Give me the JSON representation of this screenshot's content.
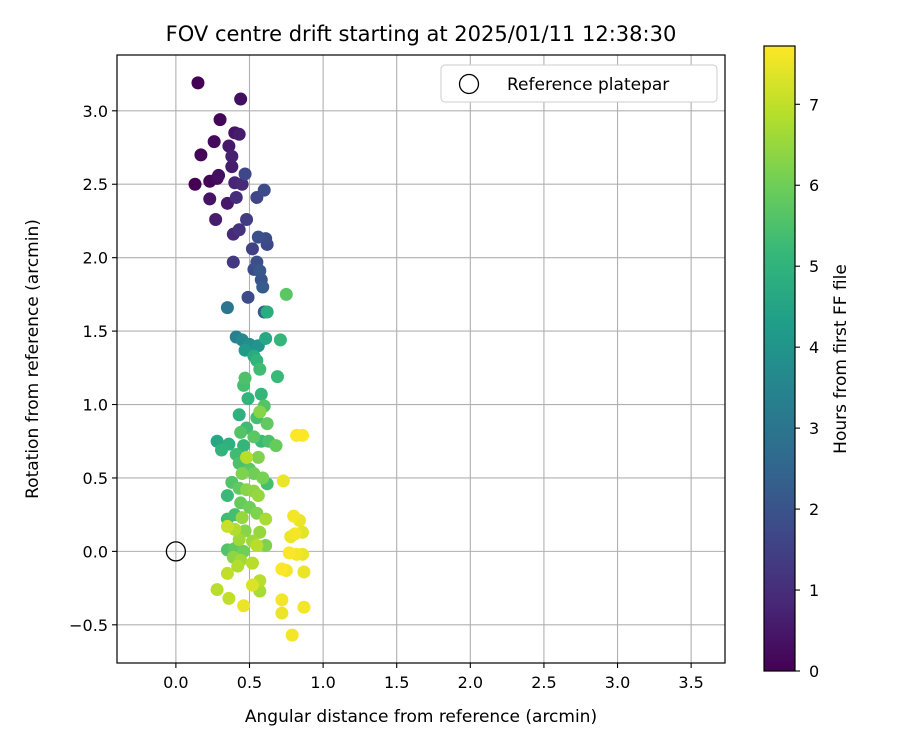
{
  "chart_data": {
    "type": "scatter",
    "title": "FOV centre drift starting at 2025/01/11 12:38:30",
    "xlabel": "Angular distance from reference (arcmin)",
    "ylabel": "Rotation from reference (arcmin)",
    "xlim": [
      -0.4,
      3.73
    ],
    "ylim": [
      -0.76,
      3.38
    ],
    "xticks": [
      "0.0",
      "0.5",
      "1.0",
      "1.5",
      "2.0",
      "2.5",
      "3.0",
      "3.5"
    ],
    "yticks": [
      "−0.5",
      "0.0",
      "0.5",
      "1.0",
      "1.5",
      "2.0",
      "2.5",
      "3.0"
    ],
    "grid": true,
    "legend_position": "top-right",
    "reference": {
      "label": "Reference platepar",
      "x": 0.0,
      "y": 0.0
    },
    "colorbar": {
      "label": "Hours from first FF file",
      "min": 0,
      "max": 7.72,
      "ticks": [
        "0",
        "1",
        "2",
        "3",
        "4",
        "5",
        "6",
        "7"
      ],
      "colormap": [
        "#440154",
        "#482878",
        "#3e4989",
        "#31688e",
        "#26828e",
        "#1f9e89",
        "#35b779",
        "#6ece58",
        "#b5de2b",
        "#fde725"
      ]
    },
    "points": [
      [
        0.15,
        3.19,
        0.0
      ],
      [
        0.44,
        3.08,
        0.3
      ],
      [
        0.3,
        2.94,
        0.1
      ],
      [
        0.4,
        2.85,
        0.4
      ],
      [
        0.43,
        2.84,
        0.6
      ],
      [
        0.26,
        2.79,
        0.2
      ],
      [
        0.36,
        2.76,
        0.5
      ],
      [
        0.17,
        2.7,
        0.1
      ],
      [
        0.38,
        2.69,
        0.7
      ],
      [
        0.38,
        2.62,
        0.6
      ],
      [
        0.47,
        2.57,
        1.7
      ],
      [
        0.29,
        2.56,
        0.3
      ],
      [
        0.28,
        2.54,
        0.2
      ],
      [
        0.23,
        2.52,
        0.1
      ],
      [
        0.13,
        2.5,
        0.0
      ],
      [
        0.4,
        2.51,
        0.8
      ],
      [
        0.45,
        2.5,
        0.9
      ],
      [
        0.6,
        2.46,
        1.8
      ],
      [
        0.55,
        2.41,
        1.6
      ],
      [
        0.41,
        2.41,
        1.0
      ],
      [
        0.23,
        2.4,
        0.4
      ],
      [
        0.35,
        2.37,
        0.5
      ],
      [
        0.27,
        2.26,
        0.6
      ],
      [
        0.48,
        2.26,
        1.4
      ],
      [
        0.43,
        2.19,
        1.1
      ],
      [
        0.39,
        2.16,
        0.9
      ],
      [
        0.56,
        2.14,
        1.9
      ],
      [
        0.61,
        2.13,
        1.8
      ],
      [
        0.62,
        2.09,
        1.7
      ],
      [
        0.52,
        2.06,
        1.5
      ],
      [
        0.39,
        1.97,
        1.3
      ],
      [
        0.55,
        1.97,
        1.9
      ],
      [
        0.53,
        1.92,
        1.8
      ],
      [
        0.57,
        1.91,
        2.1
      ],
      [
        0.58,
        1.85,
        2.0
      ],
      [
        0.59,
        1.8,
        2.2
      ],
      [
        0.75,
        1.75,
        5.7
      ],
      [
        0.49,
        1.73,
        1.8
      ],
      [
        0.35,
        1.66,
        3.0
      ],
      [
        0.6,
        1.63,
        2.3
      ],
      [
        0.62,
        1.63,
        4.8
      ],
      [
        0.41,
        1.46,
        3.4
      ],
      [
        0.45,
        1.44,
        3.6
      ],
      [
        0.61,
        1.45,
        4.6
      ],
      [
        0.71,
        1.44,
        5.1
      ],
      [
        0.5,
        1.41,
        3.8
      ],
      [
        0.56,
        1.4,
        4.0
      ],
      [
        0.47,
        1.37,
        4.2
      ],
      [
        0.53,
        1.33,
        4.7
      ],
      [
        0.55,
        1.3,
        5.0
      ],
      [
        0.57,
        1.24,
        5.3
      ],
      [
        0.69,
        1.19,
        5.2
      ],
      [
        0.47,
        1.18,
        5.5
      ],
      [
        0.46,
        1.13,
        5.4
      ],
      [
        0.58,
        1.07,
        5.1
      ],
      [
        0.49,
        1.04,
        5.0
      ],
      [
        0.6,
        0.99,
        5.6
      ],
      [
        0.57,
        0.95,
        6.3
      ],
      [
        0.43,
        0.93,
        4.9
      ],
      [
        0.55,
        0.91,
        5.4
      ],
      [
        0.62,
        0.87,
        5.8
      ],
      [
        0.48,
        0.84,
        5.3
      ],
      [
        0.44,
        0.81,
        5.6
      ],
      [
        0.53,
        0.78,
        5.7
      ],
      [
        0.58,
        0.75,
        5.2
      ],
      [
        0.63,
        0.75,
        5.5
      ],
      [
        0.68,
        0.72,
        5.9
      ],
      [
        0.28,
        0.75,
        4.6
      ],
      [
        0.36,
        0.73,
        4.9
      ],
      [
        0.46,
        0.72,
        5.1
      ],
      [
        0.31,
        0.69,
        5.0
      ],
      [
        0.41,
        0.66,
        5.3
      ],
      [
        0.56,
        0.64,
        6.2
      ],
      [
        0.48,
        0.64,
        6.9
      ],
      [
        0.43,
        0.6,
        5.5
      ],
      [
        0.5,
        0.56,
        5.7
      ],
      [
        0.53,
        0.53,
        6.0
      ],
      [
        0.59,
        0.5,
        6.1
      ],
      [
        0.45,
        0.53,
        6.2
      ],
      [
        0.73,
        0.48,
        7.5
      ],
      [
        0.62,
        0.46,
        5.4
      ],
      [
        0.38,
        0.47,
        5.6
      ],
      [
        0.43,
        0.43,
        5.8
      ],
      [
        0.48,
        0.42,
        6.3
      ],
      [
        0.53,
        0.41,
        6.4
      ],
      [
        0.56,
        0.38,
        6.5
      ],
      [
        0.35,
        0.38,
        5.2
      ],
      [
        0.44,
        0.33,
        5.9
      ],
      [
        0.5,
        0.3,
        6.0
      ],
      [
        0.55,
        0.26,
        6.2
      ],
      [
        0.4,
        0.25,
        5.4
      ],
      [
        0.35,
        0.22,
        5.3
      ],
      [
        0.45,
        0.23,
        6.5
      ],
      [
        0.61,
        0.22,
        6.7
      ],
      [
        0.8,
        0.24,
        7.6
      ],
      [
        0.84,
        0.21,
        7.5
      ],
      [
        0.35,
        0.17,
        7.1
      ],
      [
        0.4,
        0.15,
        6.8
      ],
      [
        0.47,
        0.14,
        6.3
      ],
      [
        0.57,
        0.13,
        6.5
      ],
      [
        0.81,
        0.12,
        7.6
      ],
      [
        0.86,
        0.13,
        7.4
      ],
      [
        0.78,
        0.1,
        7.5
      ],
      [
        0.43,
        0.08,
        6.6
      ],
      [
        0.52,
        0.07,
        6.6
      ],
      [
        0.55,
        0.04,
        6.9
      ],
      [
        0.61,
        0.04,
        6.2
      ],
      [
        0.35,
        0.01,
        5.6
      ],
      [
        0.4,
        0.02,
        5.8
      ],
      [
        0.46,
        0.0,
        6.0
      ],
      [
        0.77,
        -0.01,
        7.7
      ],
      [
        0.82,
        -0.02,
        7.6
      ],
      [
        0.86,
        -0.02,
        7.5
      ],
      [
        0.39,
        -0.04,
        6.4
      ],
      [
        0.44,
        -0.06,
        6.6
      ],
      [
        0.52,
        -0.08,
        6.9
      ],
      [
        0.72,
        -0.12,
        7.7
      ],
      [
        0.75,
        -0.13,
        7.6
      ],
      [
        0.87,
        -0.14,
        7.5
      ],
      [
        0.42,
        -0.1,
        6.8
      ],
      [
        0.35,
        -0.15,
        7.0
      ],
      [
        0.57,
        -0.2,
        6.9
      ],
      [
        0.52,
        -0.23,
        7.3
      ],
      [
        0.57,
        -0.27,
        6.7
      ],
      [
        0.28,
        -0.26,
        6.9
      ],
      [
        0.36,
        -0.32,
        7.0
      ],
      [
        0.72,
        -0.33,
        7.6
      ],
      [
        0.46,
        -0.37,
        7.5
      ],
      [
        0.87,
        -0.38,
        7.6
      ],
      [
        0.72,
        -0.42,
        7.5
      ],
      [
        0.79,
        -0.57,
        7.6
      ],
      [
        0.82,
        0.79,
        7.7
      ],
      [
        0.86,
        0.79,
        7.7
      ]
    ]
  }
}
